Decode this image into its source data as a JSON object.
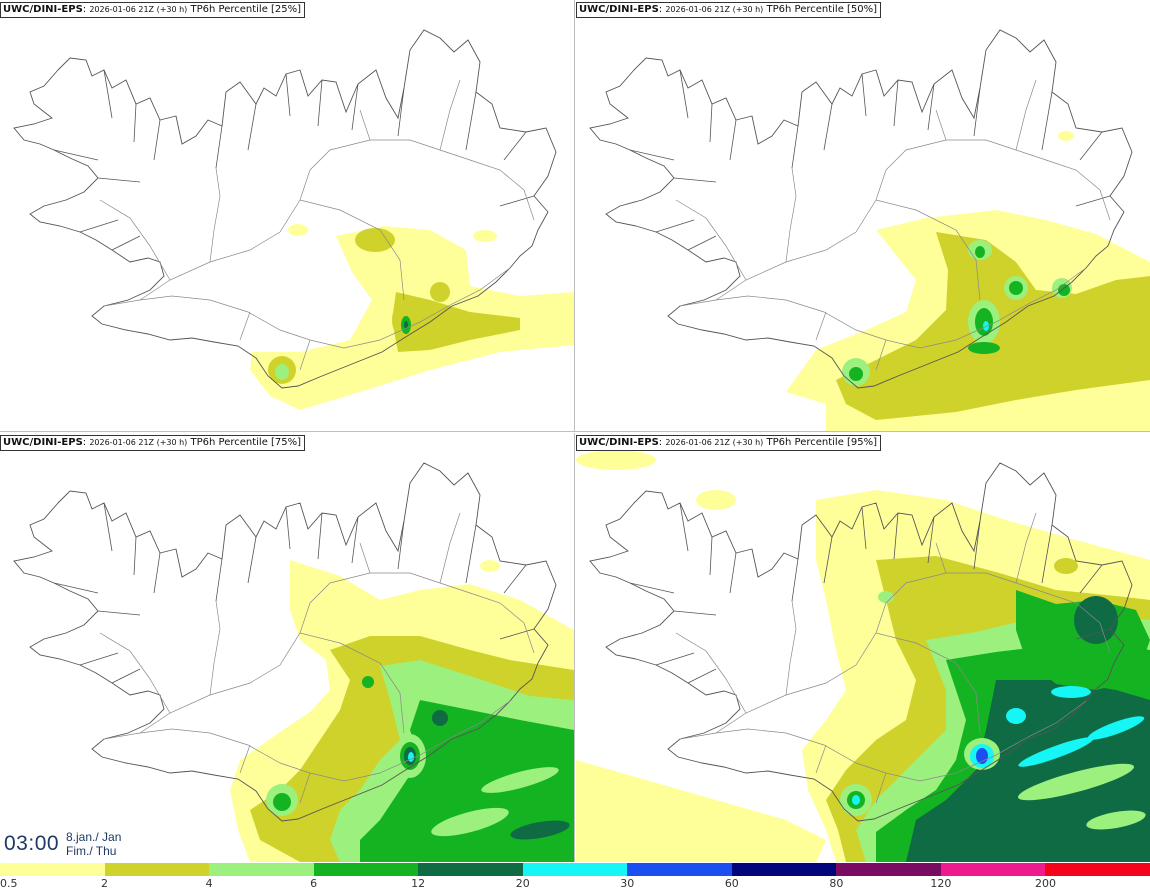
{
  "panels": [
    {
      "source": "UWC/DINI-EPS",
      "run": "2026-01-06 21Z (+30 h)",
      "product": "TP6h Percentile [25%]",
      "level": 0
    },
    {
      "source": "UWC/DINI-EPS",
      "run": "2026-01-06 21Z (+30 h)",
      "product": "TP6h Percentile [50%]",
      "level": 1
    },
    {
      "source": "UWC/DINI-EPS",
      "run": "2026-01-06 21Z (+30 h)",
      "product": "TP6h Percentile [75%]",
      "level": 2
    },
    {
      "source": "UWC/DINI-EPS",
      "run": "2026-01-06 21Z (+30 h)",
      "product": "TP6h Percentile [95%]",
      "level": 3
    }
  ],
  "valid_time": {
    "time": "03:00",
    "date_line1": "8.jan./ Jan",
    "date_line2": "Fim./ Thu"
  },
  "colorbar": {
    "labels": [
      "0.5",
      "2",
      "4",
      "6",
      "12",
      "20",
      "30",
      "60",
      "80",
      "120",
      "200"
    ],
    "colors": [
      "#ffff9a",
      "#cfd22a",
      "#9cf07d",
      "#14b322",
      "#0e6b43",
      "#16f6f5",
      "#1c4ff0",
      "#05057a",
      "#7a0b63",
      "#ee1b8f",
      "#f4031b"
    ]
  },
  "colors": {
    "land": "#ffffff",
    "outline": "#555555",
    "roads": "#8a8a8a"
  }
}
